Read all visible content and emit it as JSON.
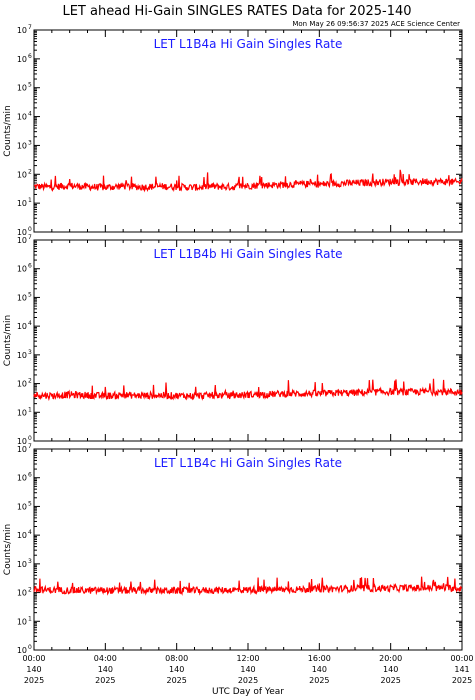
{
  "header": {
    "title": "LET ahead Hi-Gain SINGLES RATES Data for 2025-140",
    "timestamp": "Mon May 26 09:56:37 2025 ACE Science Center"
  },
  "axes": {
    "ylabel": "Counts/min",
    "xlabel": "UTC Day of Year",
    "xticks": [
      {
        "time": "00:00",
        "doy": "140",
        "year": "2025"
      },
      {
        "time": "04:00",
        "doy": "140",
        "year": "2025"
      },
      {
        "time": "08:00",
        "doy": "140",
        "year": "2025"
      },
      {
        "time": "12:00",
        "doy": "140",
        "year": "2025"
      },
      {
        "time": "16:00",
        "doy": "140",
        "year": "2025"
      },
      {
        "time": "20:00",
        "doy": "140",
        "year": "2025"
      },
      {
        "time": "00:00",
        "doy": "141",
        "year": "2025"
      }
    ],
    "yticks": [
      {
        "base": "10",
        "exp": "0"
      },
      {
        "base": "10",
        "exp": "1"
      },
      {
        "base": "10",
        "exp": "2"
      },
      {
        "base": "10",
        "exp": "3"
      },
      {
        "base": "10",
        "exp": "4"
      },
      {
        "base": "10",
        "exp": "5"
      },
      {
        "base": "10",
        "exp": "6"
      },
      {
        "base": "10",
        "exp": "7"
      }
    ]
  },
  "colors": {
    "series": "#ff0000",
    "panel_title": "#1a1aff",
    "axes": "#000000"
  },
  "chart_data": [
    {
      "type": "line",
      "title": "LET L1B4a Hi Gain Singles Rate",
      "ylabel": "Counts/min",
      "xlabel": "UTC Day of Year",
      "yscale": "log",
      "ylim": [
        1,
        10000000
      ],
      "xlim": [
        0,
        24
      ],
      "x_unit": "hours UTC on day 140 of 2025",
      "series": [
        {
          "x": [
            0,
            1,
            2,
            3,
            4,
            5,
            6,
            7,
            8,
            9,
            10,
            11,
            12,
            13,
            14,
            15,
            16,
            17,
            18,
            19,
            20,
            21,
            22,
            23,
            24
          ],
          "values": [
            38,
            36,
            40,
            37,
            35,
            39,
            36,
            38,
            37,
            35,
            38,
            36,
            40,
            42,
            44,
            46,
            45,
            48,
            50,
            52,
            55,
            53,
            57,
            55,
            52
          ]
        }
      ]
    },
    {
      "type": "line",
      "title": "LET L1B4b Hi Gain Singles Rate",
      "ylabel": "Counts/min",
      "xlabel": "UTC Day of Year",
      "yscale": "log",
      "ylim": [
        1,
        10000000
      ],
      "xlim": [
        0,
        24
      ],
      "x_unit": "hours UTC on day 140 of 2025",
      "series": [
        {
          "x": [
            0,
            1,
            2,
            3,
            4,
            5,
            6,
            7,
            8,
            9,
            10,
            11,
            12,
            13,
            14,
            15,
            16,
            17,
            18,
            19,
            20,
            21,
            22,
            23,
            24
          ],
          "values": [
            40,
            38,
            41,
            39,
            37,
            40,
            38,
            39,
            38,
            37,
            39,
            38,
            41,
            42,
            44,
            45,
            44,
            47,
            48,
            50,
            52,
            50,
            53,
            52,
            50
          ]
        }
      ]
    },
    {
      "type": "line",
      "title": "LET L1B4c Hi Gain Singles Rate",
      "ylabel": "Counts/min",
      "xlabel": "UTC Day of Year",
      "yscale": "log",
      "ylim": [
        1,
        10000000
      ],
      "xlim": [
        0,
        24
      ],
      "x_unit": "hours UTC on day 140 of 2025",
      "series": [
        {
          "x": [
            0,
            1,
            2,
            3,
            4,
            5,
            6,
            7,
            8,
            9,
            10,
            11,
            12,
            13,
            14,
            15,
            16,
            17,
            18,
            19,
            20,
            21,
            22,
            23,
            24
          ],
          "values": [
            125,
            122,
            120,
            118,
            119,
            117,
            118,
            116,
            117,
            118,
            120,
            122,
            124,
            125,
            128,
            130,
            132,
            135,
            138,
            140,
            142,
            145,
            143,
            145,
            140
          ]
        }
      ]
    }
  ]
}
